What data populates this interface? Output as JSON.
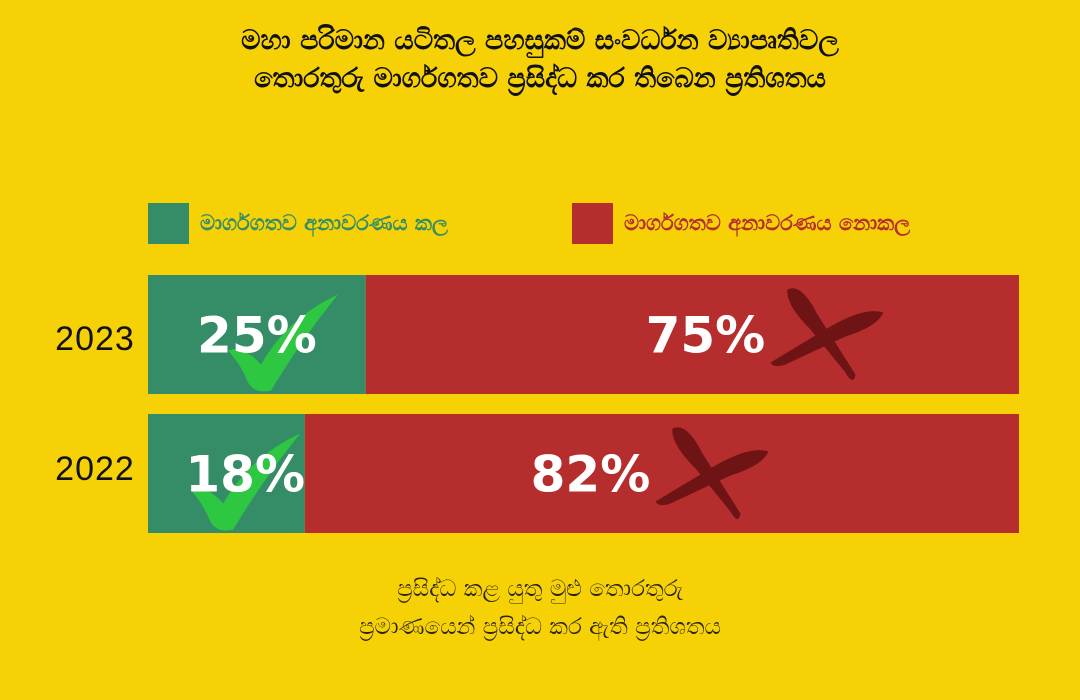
{
  "title": {
    "line1": "මහා පරිමාන යටිතල පහසුකම් සංවර්ධන ව්‍යාපෘතිවල",
    "line2": "තොරතුරු මාර්ගගතව ප්‍රසිද්ධ කර තිබෙන ප්‍රතිශතය"
  },
  "colors": {
    "background": "#f6d106",
    "published": "#348d66",
    "not_published": "#b52d2d",
    "cross": "#6e1414",
    "check": "#2ec742"
  },
  "chart_data": {
    "type": "bar",
    "orientation": "horizontal",
    "stacked": true,
    "unit": "%",
    "categories": [
      "2023",
      "2022"
    ],
    "series": [
      {
        "name": "මාර්ගගතව අනාවරණය කල",
        "values": [
          25,
          18
        ],
        "labels": [
          "25%",
          "18%"
        ],
        "marker": "check-icon"
      },
      {
        "name": "මාර්ගගතව අනාවරණය නොකල",
        "values": [
          75,
          82
        ],
        "labels": [
          "75%",
          "82%"
        ],
        "marker": "cross-icon"
      }
    ],
    "xlim": [
      0,
      100
    ],
    "legend_position": "top",
    "grid": false
  },
  "footnote": {
    "line1": "ප්‍රසිද්ධ කළ යුතු මුළු තොරතුරු",
    "line2": "ප්‍රමාණයෙන් ප්‍රසිද්ධ කර ඇති ප්‍රතිශතය"
  }
}
